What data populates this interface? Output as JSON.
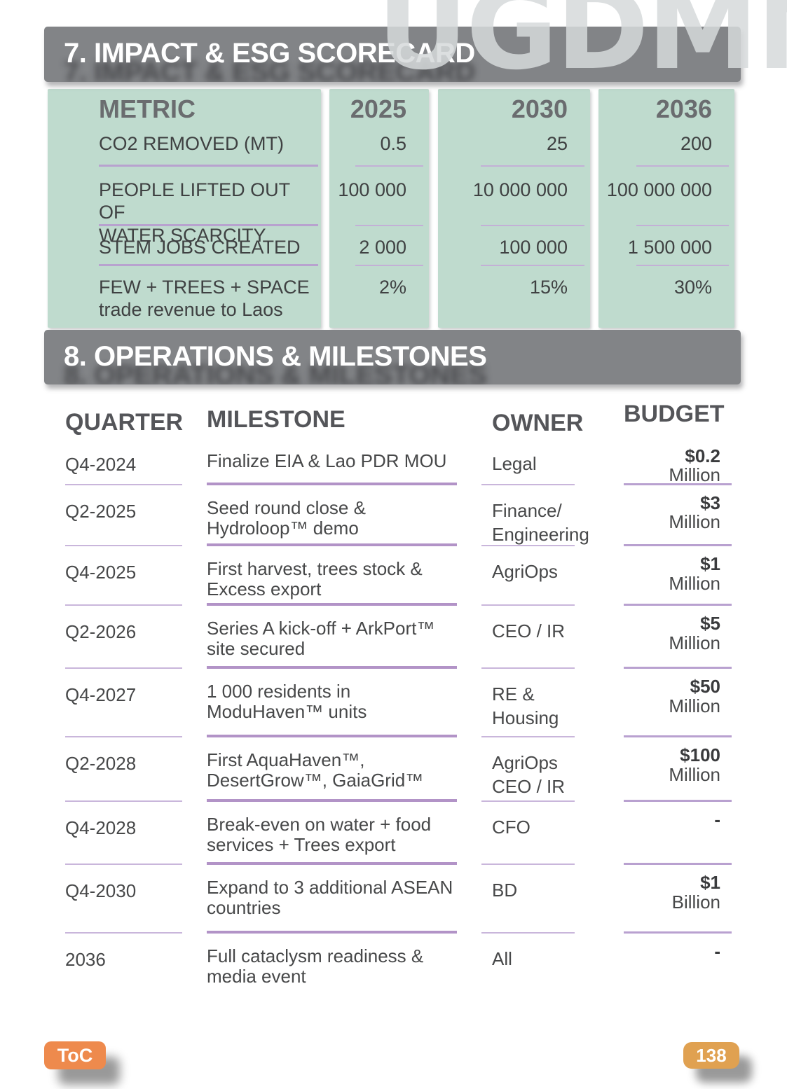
{
  "watermark": "UGDMN",
  "sections": {
    "impact": {
      "title": "7. IMPACT & ESG SCORECARD"
    },
    "operations": {
      "title": "8. OPERATIONS & MILESTONES"
    }
  },
  "scorecard": {
    "headers": [
      "METRIC",
      "2025",
      "2030",
      "2036"
    ],
    "rows": [
      {
        "metric": "CO2 REMOVED (MT)",
        "values": [
          "0.5",
          "25",
          "200"
        ]
      },
      {
        "metric": "PEOPLE LIFTED OUT OF\nWATER SCARCITY",
        "values": [
          "100 000",
          "10 000 000",
          "100 000 000"
        ]
      },
      {
        "metric": "STEM JOBS CREATED",
        "values": [
          "2 000",
          "100 000",
          "1 500 000"
        ]
      },
      {
        "metric": "FEW + TREES + SPACE\ntrade revenue to Laos",
        "values": [
          "2%",
          "15%",
          "30%"
        ]
      }
    ]
  },
  "milestones": {
    "headers": [
      "QUARTER",
      "MILESTONE",
      "OWNER",
      "BUDGET"
    ],
    "rows": [
      {
        "quarter": "Q4-2024",
        "milestone": "Finalize EIA & Lao PDR MOU",
        "owner": "Legal",
        "amount": "$0.2",
        "unit": "Million"
      },
      {
        "quarter": "Q2-2025",
        "milestone": "Seed round close &\nHydroloop™ demo",
        "owner": "Finance/\nEngineering",
        "amount": "$3",
        "unit": "Million"
      },
      {
        "quarter": "Q4-2025",
        "milestone": "First harvest, trees stock &\nExcess export",
        "owner": "AgriOps",
        "amount": "$1",
        "unit": "Million"
      },
      {
        "quarter": "Q2-2026",
        "milestone": "Series A kick-off + ArkPort™\nsite secured",
        "owner": "CEO / IR",
        "amount": "$5",
        "unit": "Million"
      },
      {
        "quarter": "Q4-2027",
        "milestone": "1 000 residents in\nModuHaven™ units",
        "owner": "RE & Housing",
        "amount": "$50",
        "unit": "Million"
      },
      {
        "quarter": "Q2-2028",
        "milestone": "First AquaHaven™,\nDesertGrow™, GaiaGrid™",
        "owner": "AgriOps\nCEO / IR",
        "amount": "$100",
        "unit": "Million"
      },
      {
        "quarter": "Q4-2028",
        "milestone": "Break-even on water + food\nservices + Trees export",
        "owner": "CFO",
        "amount": "-",
        "unit": ""
      },
      {
        "quarter": "Q4-2030",
        "milestone": "Expand to 3 additional ASEAN\ncountries",
        "owner": "BD",
        "amount": "$1",
        "unit": "Billion"
      },
      {
        "quarter": "2036",
        "milestone": "Full cataclysm readiness &\nmedia event",
        "owner": "All",
        "amount": "-",
        "unit": ""
      }
    ]
  },
  "footer": {
    "toc_label": "ToC",
    "page_number": "138"
  },
  "colors": {
    "banner_gray": "#828487",
    "panel_green": "#bfdbce",
    "divider_lavender_thick": "#b293c7",
    "divider_lavender_thin": "#c9b6db",
    "toc_orange": "#ee8a4d",
    "page_badge_orange": "#e0a151",
    "text_dark": "#414042",
    "header_gray": "#6a6c6f"
  }
}
